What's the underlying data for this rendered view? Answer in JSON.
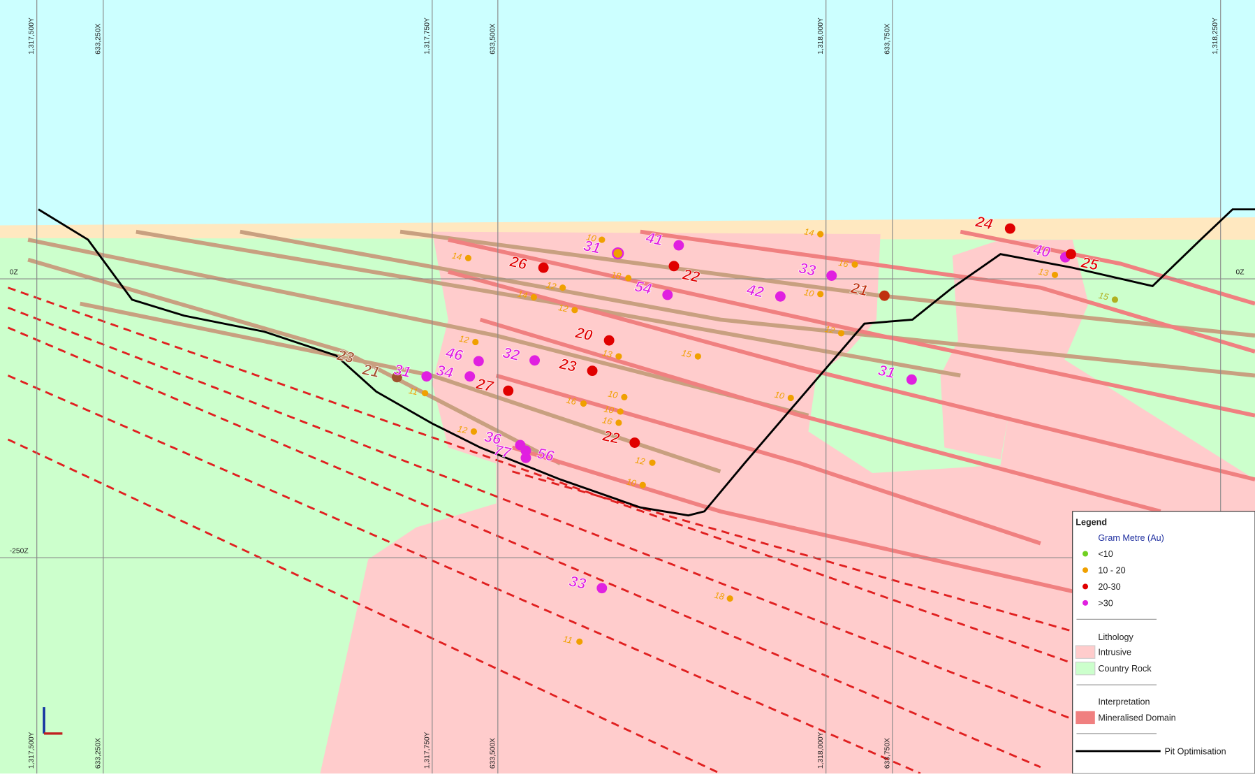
{
  "grid": {
    "top_labels": [
      "1,317,500Y",
      "633,250X",
      "1,317,750Y",
      "633,500X",
      "1,318,000Y",
      "633,750X",
      "1,318,250Y"
    ],
    "bottom_labels": [
      "1,317,500Y",
      "633,250X",
      "1,317,750Y",
      "633,500X",
      "1,318,000Y",
      "633,750X"
    ],
    "level_labels": [
      "0Z",
      "0Z",
      "-250Z"
    ]
  },
  "intercepts": [
    {
      "label": "24",
      "color": "#e00000"
    },
    {
      "label": "40",
      "color": "#e020e0"
    },
    {
      "label": "25",
      "color": "#e00000"
    },
    {
      "label": "26",
      "color": "#e00000"
    },
    {
      "label": "41",
      "color": "#e020e0"
    },
    {
      "label": "31",
      "color": "#e020e0"
    },
    {
      "label": "22",
      "color": "#e00000"
    },
    {
      "label": "54",
      "color": "#e020e0"
    },
    {
      "label": "33",
      "color": "#e020e0"
    },
    {
      "label": "21",
      "color": "#c03010"
    },
    {
      "label": "42",
      "color": "#e020e0"
    },
    {
      "label": "20",
      "color": "#e00000"
    },
    {
      "label": "32",
      "color": "#e020e0"
    },
    {
      "label": "23",
      "color": "#e00000"
    },
    {
      "label": "46",
      "color": "#e020e0"
    },
    {
      "label": "34",
      "color": "#e020e0"
    },
    {
      "label": "27",
      "color": "#e00000"
    },
    {
      "label": "23",
      "color": "#a0522d"
    },
    {
      "label": "21",
      "color": "#a0522d"
    },
    {
      "label": "31",
      "color": "#e020e0"
    },
    {
      "label": "31",
      "color": "#e020e0"
    },
    {
      "label": "22",
      "color": "#e00000"
    },
    {
      "label": "36",
      "color": "#e020e0"
    },
    {
      "label": "77",
      "color": "#e020e0"
    },
    {
      "label": "56",
      "color": "#e020e0"
    },
    {
      "label": "33",
      "color": "#e020e0"
    },
    {
      "label": "14",
      "color": "#f0a000"
    },
    {
      "label": "16",
      "color": "#f0a000"
    },
    {
      "label": "13",
      "color": "#f0a000"
    },
    {
      "label": "15",
      "color": "#b0b020"
    },
    {
      "label": "10",
      "color": "#f0a000"
    },
    {
      "label": "12",
      "color": "#f0a000"
    },
    {
      "label": "10",
      "color": "#f0a000"
    },
    {
      "label": "14",
      "color": "#f0a000"
    },
    {
      "label": "10",
      "color": "#f0a000"
    },
    {
      "label": "18",
      "color": "#f0a000"
    },
    {
      "label": "12",
      "color": "#f0a000"
    },
    {
      "label": "14",
      "color": "#f0a000"
    },
    {
      "label": "12",
      "color": "#f0a000"
    },
    {
      "label": "12",
      "color": "#f0a000"
    },
    {
      "label": "13",
      "color": "#f0a000"
    },
    {
      "label": "15",
      "color": "#f0a000"
    },
    {
      "label": "16",
      "color": "#f0a000"
    },
    {
      "label": "10",
      "color": "#f0a000"
    },
    {
      "label": "10",
      "color": "#f0a000"
    },
    {
      "label": "16",
      "color": "#f0a000"
    },
    {
      "label": "11",
      "color": "#f0a000"
    },
    {
      "label": "12",
      "color": "#f0a000"
    },
    {
      "label": "12",
      "color": "#f0a000"
    },
    {
      "label": "10",
      "color": "#f0a000"
    },
    {
      "label": "18",
      "color": "#f0a000"
    },
    {
      "label": "11",
      "color": "#f0a000"
    }
  ],
  "legend": {
    "title": "Legend",
    "grade_heading": "Gram Metre (Au)",
    "grades": [
      {
        "label": "<10",
        "color": "#70d020"
      },
      {
        "label": "10 - 20",
        "color": "#f0a000"
      },
      {
        "label": "20-30",
        "color": "#e00000"
      },
      {
        "label": ">30",
        "color": "#e020e0"
      }
    ],
    "lithology_heading": "Lithology",
    "lithology": [
      {
        "label": "Intrusive",
        "color": "#ffcccc"
      },
      {
        "label": "Country Rock",
        "color": "#ccffcc"
      }
    ],
    "interpretation_heading": "Interpretation",
    "interpretation": [
      {
        "label": "Mineralised Domain",
        "color": "#f08080"
      }
    ],
    "pit": "Pit Optimisation"
  }
}
